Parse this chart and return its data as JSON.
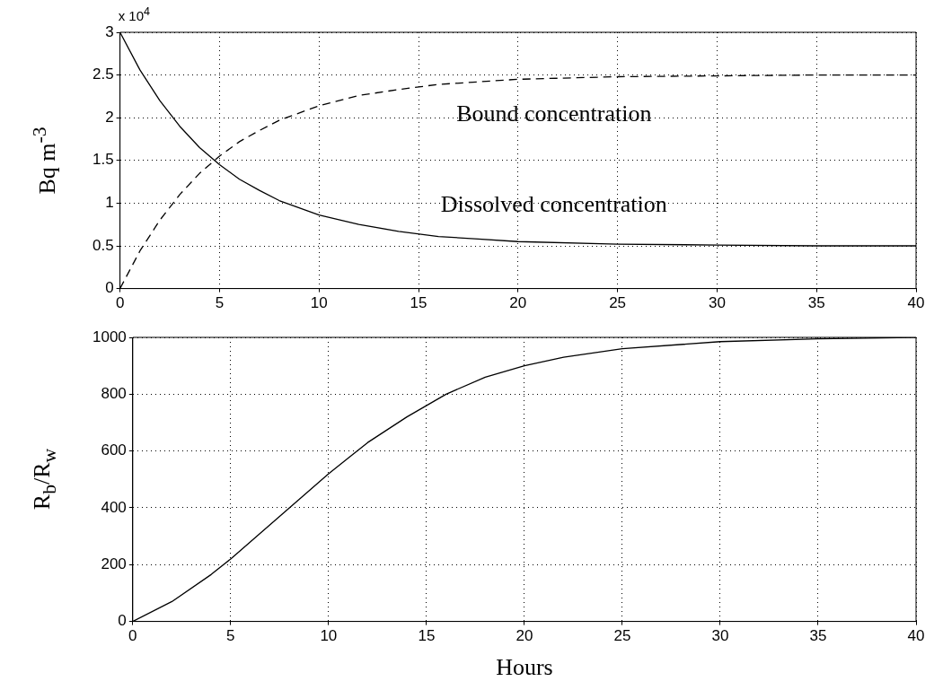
{
  "chart_data": [
    {
      "type": "line",
      "ylabel": "Bq m$^{-3}$",
      "annotations": [
        "x 10$^{4}$"
      ],
      "grid": true,
      "legend": false,
      "marker": "none",
      "xlim": [
        0,
        40
      ],
      "xticks": [
        0,
        5,
        10,
        15,
        20,
        25,
        30,
        35,
        40
      ],
      "ylim": [
        0,
        3
      ],
      "yticks": [
        0,
        0.5,
        1,
        1.5,
        2,
        2.5,
        3
      ],
      "x": [
        0,
        1,
        2,
        3,
        4,
        5,
        6,
        7,
        8,
        10,
        12,
        14,
        16,
        18,
        20,
        25,
        30,
        35,
        40
      ],
      "series": [
        {
          "name": "Bound concentration",
          "color": "#000000",
          "line_style": "dashed",
          "values": [
            0,
            0.44,
            0.8,
            1.1,
            1.35,
            1.55,
            1.72,
            1.85,
            1.97,
            2.14,
            2.26,
            2.33,
            2.39,
            2.42,
            2.45,
            2.48,
            2.49,
            2.5,
            2.5
          ]
        },
        {
          "name": "Dissolved concentration",
          "color": "#000000",
          "line_style": "solid",
          "values": [
            3,
            2.56,
            2.2,
            1.9,
            1.65,
            1.45,
            1.28,
            1.15,
            1.03,
            0.86,
            0.75,
            0.67,
            0.61,
            0.58,
            0.55,
            0.52,
            0.51,
            0.5,
            0.5
          ]
        }
      ]
    },
    {
      "type": "line",
      "ylabel": "R$_{b}$/R$_{w}$",
      "xlabel": "Hours",
      "grid": true,
      "legend": false,
      "marker": "none",
      "xlim": [
        0,
        40
      ],
      "xticks": [
        0,
        5,
        10,
        15,
        20,
        25,
        30,
        35,
        40
      ],
      "ylim": [
        0,
        1000
      ],
      "yticks": [
        0,
        200,
        400,
        600,
        800,
        1000
      ],
      "x": [
        0,
        2,
        4,
        5,
        6,
        8,
        10,
        12,
        14,
        16,
        18,
        20,
        22,
        25,
        30,
        35,
        40
      ],
      "series": [
        {
          "color": "#000000",
          "line_style": "solid",
          "values": [
            0,
            70,
            165,
            220,
            280,
            400,
            520,
            630,
            720,
            800,
            860,
            900,
            930,
            960,
            985,
            995,
            1000
          ]
        }
      ]
    }
  ]
}
